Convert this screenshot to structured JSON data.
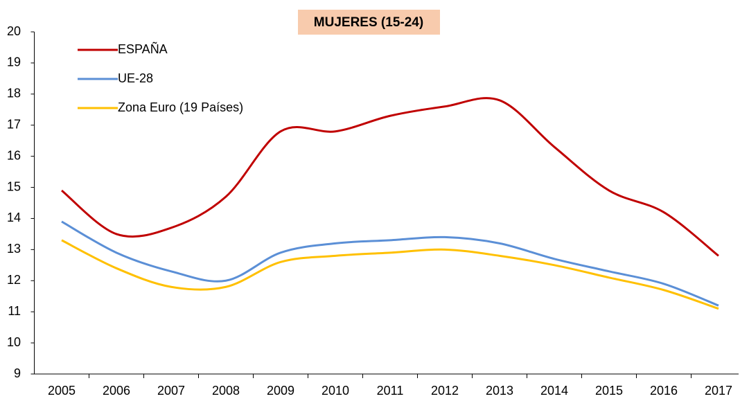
{
  "chart_data": {
    "type": "line",
    "title": "MUJERES (15-24)",
    "categories": [
      "2005",
      "2006",
      "2007",
      "2008",
      "2009",
      "2010",
      "2011",
      "2012",
      "2013",
      "2014",
      "2015",
      "2016",
      "2017"
    ],
    "series": [
      {
        "name": "ESPAÑA",
        "color": "#c00000",
        "values": [
          14.9,
          13.5,
          13.7,
          14.7,
          16.8,
          16.8,
          17.3,
          17.6,
          17.8,
          16.3,
          14.9,
          14.2,
          12.8
        ]
      },
      {
        "name": "UE-28",
        "color": "#5b8fd6",
        "values": [
          13.9,
          12.9,
          12.3,
          12.0,
          12.9,
          13.2,
          13.3,
          13.4,
          13.2,
          12.7,
          12.3,
          11.9,
          11.2
        ]
      },
      {
        "name": "Zona Euro (19 Países)",
        "color": "#ffc000",
        "values": [
          13.3,
          12.4,
          11.8,
          11.8,
          12.6,
          12.8,
          12.9,
          13.0,
          12.8,
          12.5,
          12.1,
          11.7,
          11.1
        ]
      }
    ],
    "ylim": [
      9,
      20
    ],
    "yticks": [
      9,
      10,
      11,
      12,
      13,
      14,
      15,
      16,
      17,
      18,
      19,
      20
    ],
    "smooth": true,
    "legend": "top-left"
  }
}
